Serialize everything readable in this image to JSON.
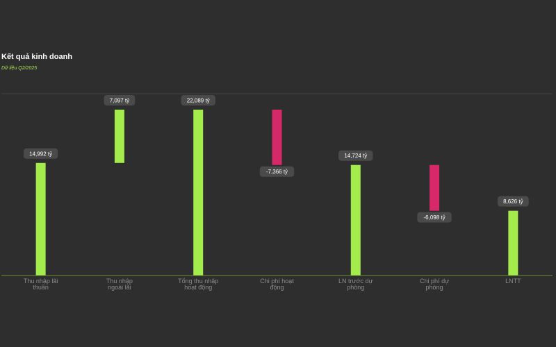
{
  "header": {
    "title": "Kết quả kinh doanh",
    "subtitle": "Dữ liệu Q2/2025"
  },
  "colors": {
    "background": "#2e2e2e",
    "positive": "#a3ec4b",
    "negative": "#d6296a",
    "label_bg": "#4a4a4a",
    "axis": "#6a8f3a",
    "grid": "#444444"
  },
  "chart_data": {
    "type": "bar",
    "subtype": "waterfall",
    "categories": [
      [
        "Thu nhập lãi",
        "thuần"
      ],
      [
        "Thu nhập",
        "ngoài lãi"
      ],
      [
        "Tổng thu nhập",
        "hoạt động"
      ],
      [
        "Chi phí hoạt",
        "động"
      ],
      [
        "LN trước dự",
        "phòng"
      ],
      [
        "Chi phí dự",
        "phòng"
      ],
      [
        "LNTT"
      ]
    ],
    "bars": [
      {
        "start": 0,
        "end": 14992,
        "value_label": "14,992 tỷ",
        "kind": "positive"
      },
      {
        "start": 14992,
        "end": 22089,
        "value_label": "7,097 tỷ",
        "kind": "positive"
      },
      {
        "start": 0,
        "end": 22089,
        "value_label": "22,089 tỷ",
        "kind": "positive"
      },
      {
        "start": 22089,
        "end": 14723,
        "value_label": "-7,366 tỷ",
        "kind": "negative"
      },
      {
        "start": 0,
        "end": 14724,
        "value_label": "14,724 tỷ",
        "kind": "positive"
      },
      {
        "start": 14724,
        "end": 8626,
        "value_label": "-6,098 tỷ",
        "kind": "negative"
      },
      {
        "start": 0,
        "end": 8626,
        "value_label": "8,626 tỷ",
        "kind": "positive"
      }
    ],
    "ylim": [
      0,
      22089
    ],
    "grid": true,
    "legend": "none"
  }
}
